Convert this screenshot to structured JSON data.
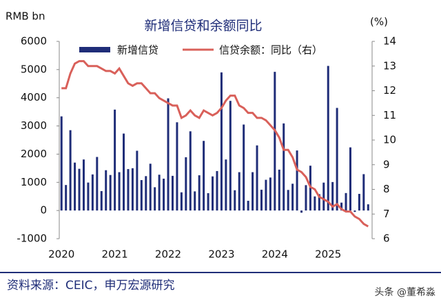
{
  "chart_data": {
    "type": "bar_line",
    "title": "新增信贷和余额同比",
    "y_label": "RMB bn",
    "y2_label": "(%)",
    "categories": [
      "2020",
      null,
      null,
      null,
      null,
      null,
      null,
      null,
      null,
      null,
      null,
      null,
      "2021",
      null,
      null,
      null,
      null,
      null,
      null,
      null,
      null,
      null,
      null,
      null,
      "2022",
      null,
      null,
      null,
      null,
      null,
      null,
      null,
      null,
      null,
      null,
      null,
      "2023",
      null,
      null,
      null,
      null,
      null,
      null,
      null,
      null,
      null,
      null,
      null,
      "2024",
      null,
      null,
      null,
      null,
      null,
      null,
      null,
      null,
      null,
      null,
      null,
      "2025",
      null,
      null,
      null,
      null,
      null,
      null,
      null,
      null,
      null
    ],
    "series": [
      {
        "name": "新增信贷",
        "color": "#1f2d78",
        "kind": "bar",
        "values": [
          3340,
          905,
          2850,
          1700,
          1480,
          1810,
          992,
          1280,
          1900,
          689,
          1430,
          1260,
          3580,
          1360,
          2730,
          1470,
          1500,
          2120,
          1080,
          1220,
          1660,
          826,
          1270,
          1130,
          3980,
          1230,
          3130,
          645,
          1890,
          2810,
          679,
          1250,
          2470,
          615,
          1210,
          1400,
          4900,
          1810,
          3890,
          719,
          1360,
          3050,
          345,
          1360,
          2310,
          738,
          1090,
          1170,
          4920,
          1450,
          3090,
          730,
          950,
          2130,
          -77,
          900,
          1590,
          500,
          580,
          990,
          5130,
          1010,
          3640,
          280,
          620,
          2240,
          -50,
          590,
          1290,
          220
        ]
      },
      {
        "name": "信贷余额：同比（右）",
        "color": "#d9605a",
        "kind": "line",
        "axis": "y2",
        "values": [
          12.1,
          12.1,
          12.7,
          13.1,
          13.2,
          13.2,
          13.0,
          13.0,
          13.0,
          12.9,
          12.8,
          12.8,
          12.7,
          12.9,
          12.6,
          12.3,
          12.2,
          12.3,
          12.3,
          12.1,
          11.9,
          11.9,
          11.7,
          11.6,
          11.5,
          11.4,
          11.4,
          10.9,
          11.0,
          11.2,
          11.0,
          10.9,
          11.2,
          11.1,
          11.0,
          11.1,
          11.3,
          11.6,
          11.8,
          11.8,
          11.4,
          11.3,
          11.1,
          11.1,
          10.9,
          10.9,
          10.8,
          10.6,
          10.4,
          10.1,
          9.6,
          9.6,
          9.3,
          8.8,
          8.7,
          8.5,
          8.1,
          8.0,
          7.7,
          7.6,
          7.5,
          7.3,
          7.4,
          7.2,
          7.1,
          7.1,
          6.9,
          6.8,
          6.6,
          6.5
        ]
      }
    ],
    "ylim": [
      -1000,
      6000
    ],
    "yticks": [
      -1000,
      0,
      1000,
      2000,
      3000,
      4000,
      5000,
      6000
    ],
    "y2lim": [
      6,
      14
    ],
    "y2ticks": [
      6,
      7,
      8,
      9,
      10,
      11,
      12,
      13,
      14
    ]
  },
  "source": "资料来源：CEIC，申万宏源研究",
  "watermark": "头条 @董希淼"
}
